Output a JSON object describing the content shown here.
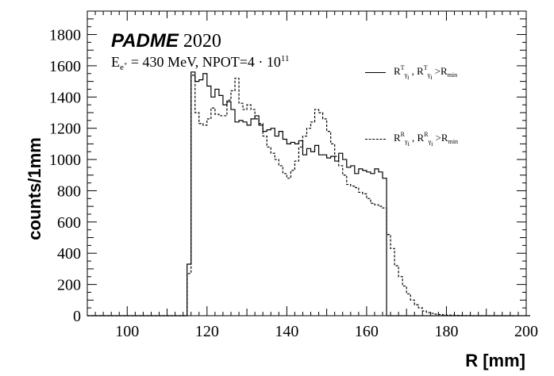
{
  "chart_data": {
    "type": "histogram",
    "xlabel": "R [mm]",
    "ylabel": "counts/1mm",
    "xlim": [
      90,
      200
    ],
    "ylim": [
      0,
      1950
    ],
    "x_ticks": [
      100,
      120,
      140,
      160,
      180,
      200
    ],
    "y_ticks": [
      0,
      200,
      400,
      600,
      800,
      1000,
      1200,
      1400,
      1600,
      1800
    ],
    "bin_start": 90,
    "bin_width": 1,
    "experiment": "PADME",
    "year": "2020",
    "beam_label": "E",
    "beam_sub": "e",
    "beam_sub_sup": "+",
    "beam_text": " = 430 MeV, NPOT=4 · 10",
    "beam_exp": "11",
    "legend": [
      {
        "name": "R_T",
        "style": "solid",
        "letter": "R",
        "sup": "T",
        "sub": "γ",
        "sub2": "i",
        "sep": " ,  ",
        "cut": " >R",
        "cut_sub": "min"
      },
      {
        "name": "R_R",
        "style": "dashed",
        "letter": "R",
        "sup": "R",
        "sub": "γ",
        "sub2": "i",
        "sep": " ,  ",
        "cut": " >R",
        "cut_sub": "min"
      }
    ],
    "series": [
      {
        "name": "R_T",
        "style": "solid",
        "values": [
          0,
          0,
          0,
          0,
          0,
          0,
          0,
          0,
          0,
          0,
          0,
          0,
          0,
          0,
          0,
          0,
          0,
          0,
          0,
          0,
          0,
          0,
          0,
          0,
          0,
          330,
          1560,
          1500,
          1510,
          1550,
          1470,
          1400,
          1450,
          1410,
          1350,
          1370,
          1320,
          1240,
          1250,
          1240,
          1220,
          1260,
          1280,
          1220,
          1180,
          1190,
          1200,
          1150,
          1180,
          1130,
          1100,
          1110,
          1100,
          1120,
          1030,
          1070,
          1050,
          1090,
          1030,
          1030,
          1010,
          1020,
          990,
          1040,
          1000,
          950,
          960,
          910,
          940,
          930,
          920,
          910,
          940,
          920,
          880,
          0,
          0,
          0,
          0,
          0,
          0,
          0,
          0,
          0,
          0,
          0,
          0,
          0,
          0,
          0,
          0,
          0,
          0,
          0,
          0,
          0,
          0,
          0,
          0,
          0,
          0,
          0,
          0,
          0,
          0,
          0,
          0,
          0,
          0,
          0,
          0
        ]
      },
      {
        "name": "R_R",
        "style": "dashed",
        "values": [
          0,
          0,
          0,
          0,
          0,
          0,
          0,
          0,
          0,
          0,
          0,
          0,
          0,
          0,
          0,
          0,
          0,
          0,
          0,
          0,
          0,
          0,
          0,
          0,
          0,
          270,
          1540,
          1300,
          1230,
          1220,
          1260,
          1330,
          1290,
          1280,
          1280,
          1380,
          1440,
          1520,
          1360,
          1320,
          1350,
          1320,
          1260,
          1230,
          1150,
          1080,
          1040,
          1000,
          960,
          910,
          880,
          930,
          990,
          1080,
          1150,
          1200,
          1240,
          1320,
          1300,
          1260,
          1180,
          1100,
          1020,
          960,
          900,
          840,
          830,
          820,
          790,
          780,
          750,
          720,
          710,
          700,
          690,
          520,
          430,
          320,
          250,
          190,
          140,
          100,
          70,
          50,
          30,
          20,
          15,
          10,
          8,
          6,
          4,
          3,
          2,
          2,
          1,
          1,
          0,
          0,
          0,
          0,
          0,
          0,
          0,
          0,
          0,
          0,
          0
        ]
      }
    ]
  }
}
